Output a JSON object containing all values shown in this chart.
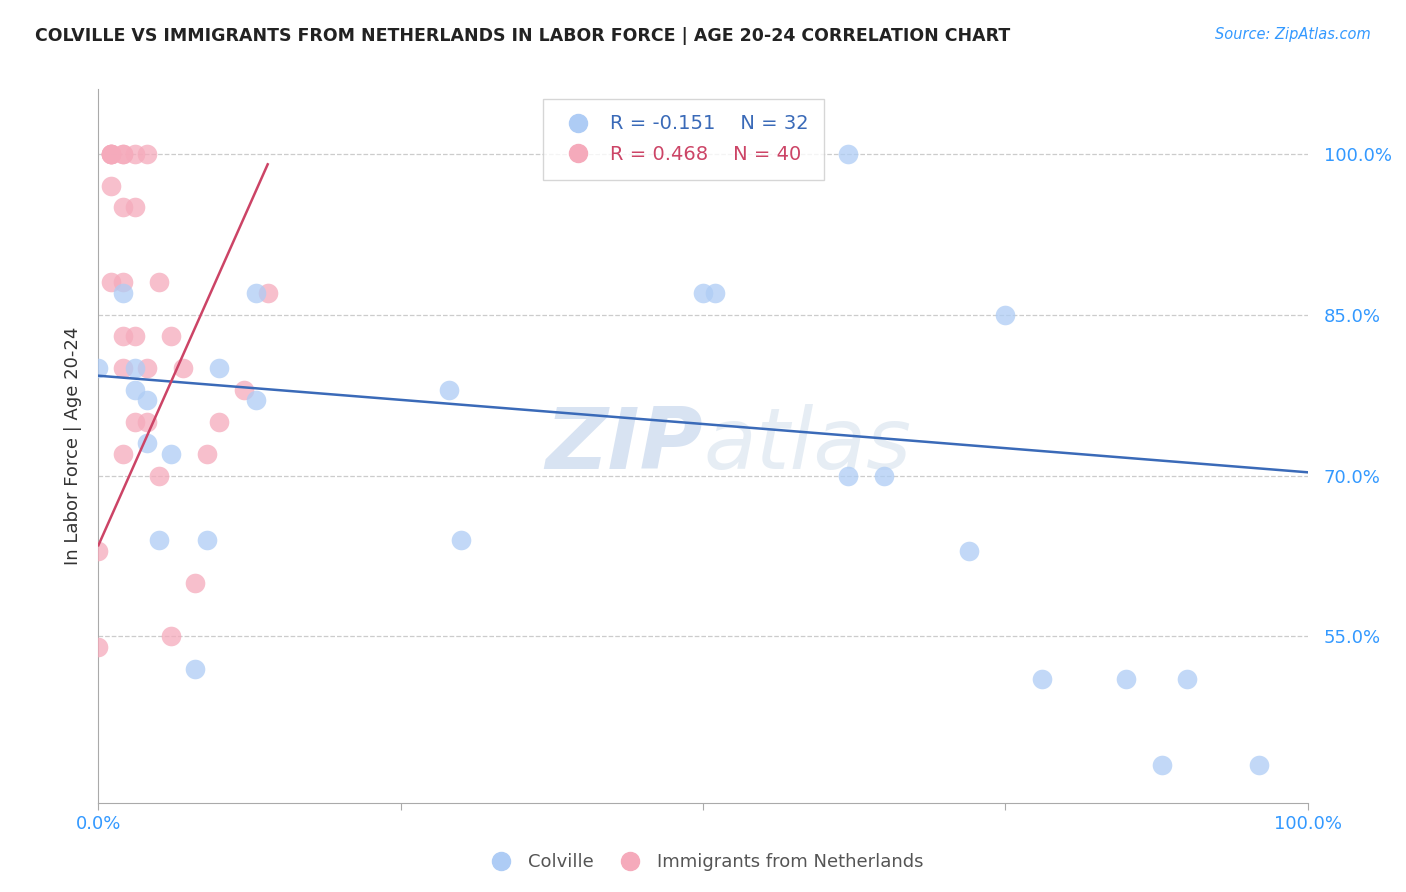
{
  "title": "COLVILLE VS IMMIGRANTS FROM NETHERLANDS IN LABOR FORCE | AGE 20-24 CORRELATION CHART",
  "source": "Source: ZipAtlas.com",
  "ylabel": "In Labor Force | Age 20-24",
  "ytick_labels": [
    "100.0%",
    "85.0%",
    "70.0%",
    "55.0%"
  ],
  "ytick_values": [
    1.0,
    0.85,
    0.7,
    0.55
  ],
  "xlim": [
    0.0,
    1.0
  ],
  "ylim": [
    0.395,
    1.06
  ],
  "colville_color": "#aeccf5",
  "netherlands_color": "#f5aabb",
  "colville_R": -0.151,
  "colville_N": 32,
  "netherlands_R": 0.468,
  "netherlands_N": 40,
  "colville_line_color": "#3a6ab8",
  "netherlands_line_color": "#cc4466",
  "watermark_zip": "ZIP",
  "watermark_atlas": "atlas",
  "colville_scatter_x": [
    0.0,
    0.02,
    0.03,
    0.03,
    0.04,
    0.04,
    0.05,
    0.06,
    0.08,
    0.09,
    0.1,
    0.13,
    0.13,
    0.29,
    0.3,
    0.5,
    0.51,
    0.62,
    0.62,
    0.65,
    0.72,
    0.75,
    0.78,
    0.85,
    0.88,
    0.9,
    0.96
  ],
  "colville_scatter_y": [
    0.8,
    0.87,
    0.8,
    0.78,
    0.77,
    0.73,
    0.64,
    0.72,
    0.52,
    0.64,
    0.8,
    0.87,
    0.77,
    0.78,
    0.64,
    0.87,
    0.87,
    0.7,
    1.0,
    0.7,
    0.63,
    0.85,
    0.51,
    0.51,
    0.43,
    0.51,
    0.43
  ],
  "netherlands_scatter_x": [
    0.0,
    0.0,
    0.01,
    0.01,
    0.01,
    0.01,
    0.01,
    0.01,
    0.02,
    0.02,
    0.02,
    0.02,
    0.02,
    0.02,
    0.02,
    0.03,
    0.03,
    0.03,
    0.03,
    0.04,
    0.04,
    0.04,
    0.05,
    0.05,
    0.06,
    0.06,
    0.07,
    0.08,
    0.09,
    0.1,
    0.12,
    0.14
  ],
  "netherlands_scatter_y": [
    0.63,
    0.54,
    1.0,
    1.0,
    1.0,
    1.0,
    0.97,
    0.88,
    1.0,
    1.0,
    0.95,
    0.88,
    0.83,
    0.8,
    0.72,
    1.0,
    0.95,
    0.83,
    0.75,
    1.0,
    0.8,
    0.75,
    0.88,
    0.7,
    0.83,
    0.55,
    0.8,
    0.6,
    0.72,
    0.75,
    0.78,
    0.87
  ],
  "blue_line_x": [
    0.0,
    1.0
  ],
  "blue_line_y": [
    0.793,
    0.703
  ],
  "red_line_x": [
    0.0,
    0.14
  ],
  "red_line_y": [
    0.635,
    0.99
  ],
  "xtick_positions": [
    0.0,
    0.25,
    0.5,
    0.75,
    1.0
  ],
  "xtick_labels": [
    "0.0%",
    "",
    "",
    "",
    "100.0%"
  ]
}
